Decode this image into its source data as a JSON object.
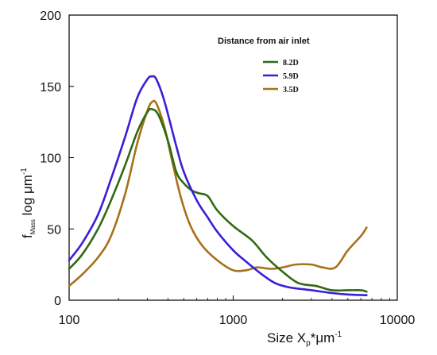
{
  "chart_data": {
    "type": "line",
    "x_scale": "log",
    "xlabel": {
      "main": "Size X",
      "sub": "p",
      "tail": "*μm",
      "sup": "-1"
    },
    "ylabel": {
      "main": "f",
      "sub": "Mass",
      "tail": "  log μm",
      "sup": "-1"
    },
    "xlim": [
      100,
      10000
    ],
    "ylim": [
      0,
      200
    ],
    "x_ticks": [
      {
        "value": 100,
        "label": "100"
      },
      {
        "value": 1000,
        "label": "1000"
      },
      {
        "value": 10000,
        "label": "10000"
      }
    ],
    "y_ticks": [
      {
        "value": 0,
        "label": "0"
      },
      {
        "value": 50,
        "label": "50"
      },
      {
        "value": 100,
        "label": "100"
      },
      {
        "value": 150,
        "label": "150"
      },
      {
        "value": 200,
        "label": "200"
      }
    ],
    "grid": false,
    "legend": {
      "title": "Distance from air inlet",
      "position": "top-right"
    },
    "series": [
      {
        "name": "8.2D",
        "color": "#2e6b12",
        "points": [
          [
            100,
            22
          ],
          [
            120,
            32
          ],
          [
            150,
            50
          ],
          [
            180,
            70
          ],
          [
            220,
            95
          ],
          [
            260,
            118
          ],
          [
            300,
            132
          ],
          [
            320,
            134
          ],
          [
            350,
            130
          ],
          [
            400,
            112
          ],
          [
            450,
            90
          ],
          [
            500,
            82
          ],
          [
            560,
            77
          ],
          [
            620,
            75
          ],
          [
            700,
            73
          ],
          [
            800,
            63
          ],
          [
            1000,
            52
          ],
          [
            1300,
            42
          ],
          [
            1600,
            30
          ],
          [
            2000,
            20
          ],
          [
            2500,
            12
          ],
          [
            3200,
            10
          ],
          [
            4000,
            7
          ],
          [
            5000,
            7
          ],
          [
            6000,
            7
          ],
          [
            6500,
            6
          ]
        ]
      },
      {
        "name": "5.9D",
        "color": "#3a1fd6",
        "points": [
          [
            100,
            28
          ],
          [
            120,
            40
          ],
          [
            150,
            60
          ],
          [
            180,
            85
          ],
          [
            220,
            115
          ],
          [
            260,
            142
          ],
          [
            300,
            155
          ],
          [
            320,
            157
          ],
          [
            340,
            155
          ],
          [
            380,
            140
          ],
          [
            450,
            108
          ],
          [
            500,
            90
          ],
          [
            600,
            70
          ],
          [
            700,
            58
          ],
          [
            800,
            48
          ],
          [
            1000,
            35
          ],
          [
            1200,
            27
          ],
          [
            1500,
            18
          ],
          [
            1800,
            12
          ],
          [
            2200,
            9
          ],
          [
            3000,
            7
          ],
          [
            4000,
            5
          ],
          [
            5000,
            4
          ],
          [
            6500,
            3.5
          ]
        ]
      },
      {
        "name": "3.5D",
        "color": "#a8701a",
        "points": [
          [
            100,
            10
          ],
          [
            120,
            18
          ],
          [
            150,
            30
          ],
          [
            180,
            45
          ],
          [
            220,
            75
          ],
          [
            260,
            110
          ],
          [
            300,
            133
          ],
          [
            320,
            139
          ],
          [
            340,
            138
          ],
          [
            380,
            122
          ],
          [
            420,
            100
          ],
          [
            480,
            72
          ],
          [
            550,
            52
          ],
          [
            650,
            38
          ],
          [
            800,
            28
          ],
          [
            1000,
            21
          ],
          [
            1200,
            21
          ],
          [
            1400,
            23
          ],
          [
            1700,
            22
          ],
          [
            2000,
            23
          ],
          [
            2400,
            25
          ],
          [
            3000,
            25
          ],
          [
            3500,
            23
          ],
          [
            4200,
            23
          ],
          [
            5000,
            35
          ],
          [
            6000,
            45
          ],
          [
            6500,
            51
          ]
        ]
      }
    ]
  }
}
